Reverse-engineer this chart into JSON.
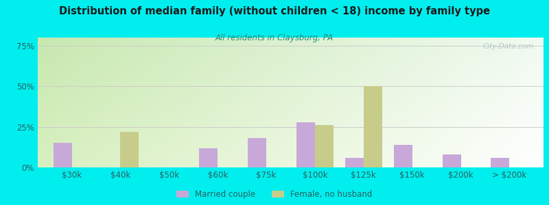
{
  "title": "Distribution of median family (without children < 18) income by family type",
  "subtitle": "All residents in Claysburg, PA",
  "categories": [
    "$30k",
    "$40k",
    "$50k",
    "$60k",
    "$75k",
    "$100k",
    "$125k",
    "$150k",
    "$200k",
    "> $200k"
  ],
  "married_couple": [
    15,
    0,
    0,
    12,
    18,
    28,
    6,
    14,
    8,
    6
  ],
  "female_no_husband": [
    0,
    22,
    0,
    0,
    0,
    26,
    50,
    0,
    0,
    0
  ],
  "married_color": "#c8a8d8",
  "female_color": "#c8cc8a",
  "background_color": "#00eeee",
  "title_color": "#1a1a1a",
  "subtitle_color": "#2a8a7a",
  "tick_color": "#2a6060",
  "grid_color": "#cccccc",
  "watermark_color": "#a8c0c0",
  "yticks": [
    0,
    25,
    50,
    75
  ],
  "ylim": [
    0,
    80
  ],
  "bar_width": 0.38,
  "title_fontsize": 10.5,
  "subtitle_fontsize": 8.5,
  "tick_fontsize": 8.5,
  "legend_fontsize": 8.5
}
